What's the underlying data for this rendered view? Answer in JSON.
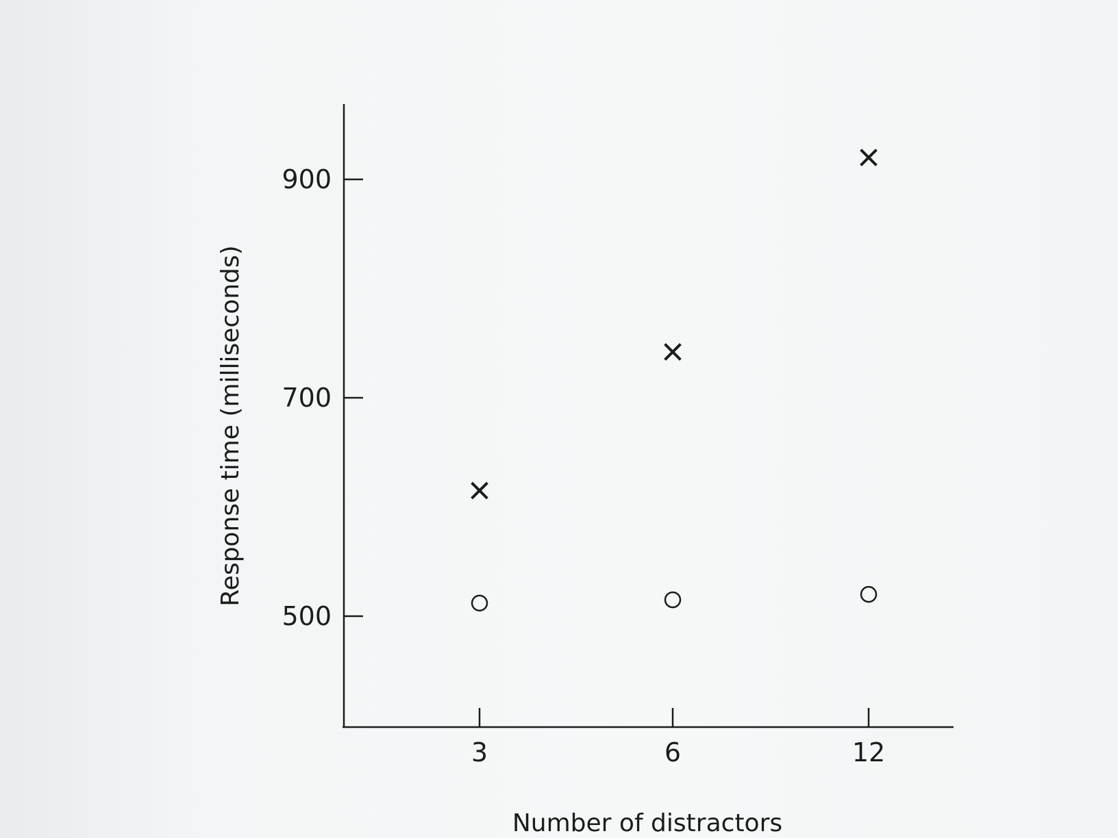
{
  "chart_data": {
    "type": "scatter",
    "x_categories": [
      "3",
      "6",
      "12"
    ],
    "xlabel": "Number of distractors",
    "ylabel": "Response time (milliseconds)",
    "y_ticks": [
      500,
      700,
      900
    ],
    "ylim": [
      400,
      970
    ],
    "grid": false,
    "legend": "none",
    "series": [
      {
        "marker": "x",
        "values": [
          615,
          742,
          920
        ]
      },
      {
        "marker": "o",
        "values": [
          512,
          515,
          520
        ]
      }
    ]
  }
}
